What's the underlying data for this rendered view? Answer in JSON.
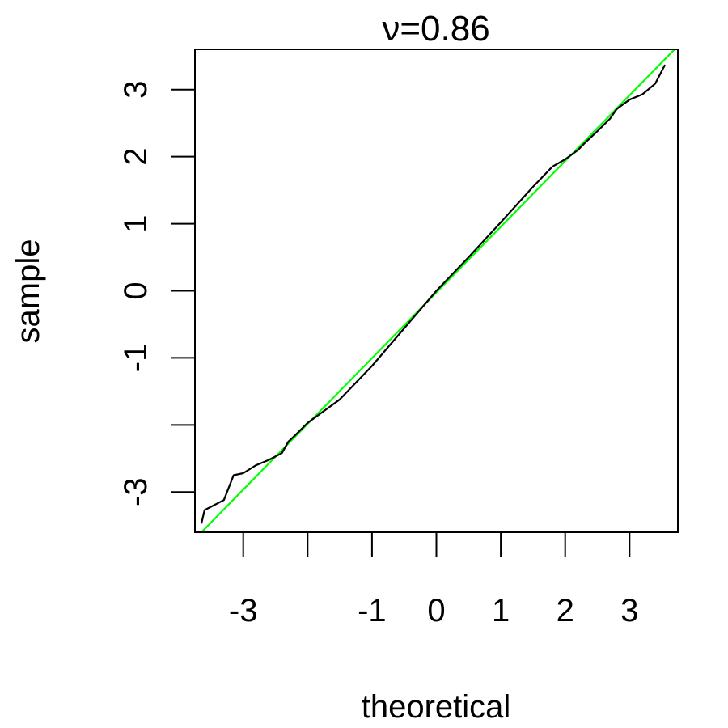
{
  "chart_data": {
    "type": "line",
    "title": "ν=0.86",
    "xlabel": "theoretical",
    "ylabel": "sample",
    "xlim": [
      -3.75,
      3.75
    ],
    "ylim": [
      -3.6,
      3.6
    ],
    "grid": false,
    "x_ticks": [
      -3,
      -2,
      -1,
      0,
      1,
      2,
      3
    ],
    "x_tick_labels": [
      "-3",
      "",
      "-1",
      "0",
      "1",
      "2",
      "3"
    ],
    "y_ticks": [
      -3,
      -2,
      -1,
      0,
      1,
      2,
      3
    ],
    "y_tick_labels": [
      "-3",
      "",
      "-1",
      "0",
      "1",
      "2",
      "3"
    ],
    "series": [
      {
        "color": "#000000",
        "x": [
          -3.65,
          -3.6,
          -3.3,
          -3.15,
          -3.0,
          -2.8,
          -2.6,
          -2.4,
          -2.3,
          -2.2,
          -2.0,
          -1.5,
          -1.0,
          -0.5,
          0.0,
          0.5,
          1.0,
          1.5,
          1.8,
          2.0,
          2.2,
          2.3,
          2.5,
          2.7,
          2.8,
          3.0,
          3.2,
          3.4,
          3.55
        ],
        "y": [
          -3.47,
          -3.27,
          -3.12,
          -2.75,
          -2.72,
          -2.6,
          -2.52,
          -2.42,
          -2.25,
          -2.16,
          -1.97,
          -1.62,
          -1.12,
          -0.56,
          0.0,
          0.5,
          1.02,
          1.55,
          1.85,
          1.96,
          2.1,
          2.2,
          2.38,
          2.57,
          2.71,
          2.85,
          2.93,
          3.09,
          3.37
        ]
      },
      {
        "color": "#00ff00",
        "x": [
          -3.7,
          3.75
        ],
        "y": [
          -3.65,
          3.65
        ]
      }
    ]
  }
}
